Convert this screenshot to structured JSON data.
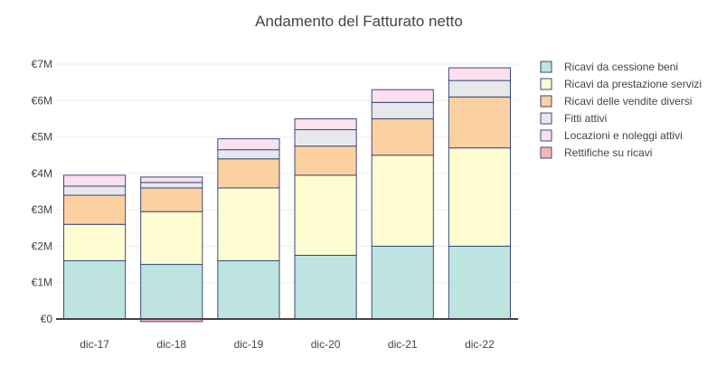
{
  "chart_data": {
    "type": "bar",
    "stacked": true,
    "title": "Andamento del Fatturato netto",
    "xlabel": "",
    "ylabel": "",
    "categories": [
      "dic-17",
      "dic-18",
      "dic-19",
      "dic-20",
      "dic-21",
      "dic-22"
    ],
    "ylim": [
      -0.08,
      7.0
    ],
    "yticks": [
      0,
      1,
      2,
      3,
      4,
      5,
      6,
      7
    ],
    "ytick_labels": [
      "€0",
      "€1M",
      "€2M",
      "€3M",
      "€4M",
      "€5M",
      "€6M",
      "€7M"
    ],
    "unit": "€M",
    "grid": true,
    "legend_position": "right",
    "series": [
      {
        "name": "Ricavi da cessione beni",
        "color": "#bde4e0",
        "values": [
          1.6,
          1.5,
          1.6,
          1.75,
          2.0,
          2.0
        ]
      },
      {
        "name": "Ricavi da prestazione servizi",
        "color": "#fefdd1",
        "values": [
          1.0,
          1.45,
          2.0,
          2.2,
          2.5,
          2.7
        ]
      },
      {
        "name": "Ricavi delle vendite diversi",
        "color": "#fdd0a2",
        "values": [
          0.8,
          0.65,
          0.8,
          0.8,
          1.0,
          1.4
        ]
      },
      {
        "name": "Fitti attivi",
        "color": "#e7e7ec",
        "values": [
          0.25,
          0.15,
          0.25,
          0.45,
          0.45,
          0.45
        ]
      },
      {
        "name": "Locazioni e noleggi attivi",
        "color": "#fce0ef",
        "values": [
          0.3,
          0.15,
          0.3,
          0.3,
          0.35,
          0.35
        ]
      },
      {
        "name": "Rettifiche su ricavi",
        "color": "#f6b6b6",
        "values": [
          0.0,
          -0.07,
          0.0,
          0.0,
          0.0,
          0.0
        ]
      }
    ]
  }
}
